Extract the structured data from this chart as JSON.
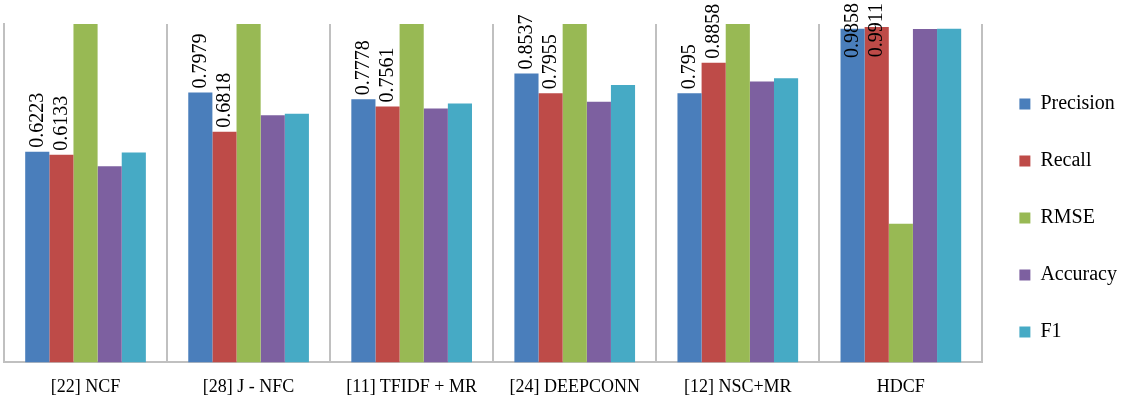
{
  "chart_data": {
    "type": "bar",
    "categories": [
      "[22] NCF",
      "[28] J - NFC",
      "[11] TFIDF + MR",
      "[24] DEEPCONN",
      "[12] NSC+MR",
      "HDCF"
    ],
    "series": [
      {
        "name": "Precision",
        "color": "#4a7ebb",
        "values": [
          0.6223,
          0.7979,
          0.7778,
          0.8537,
          0.795,
          0.9858
        ],
        "value_labels": [
          "0.6223",
          "0.7979",
          "0.7778",
          "0.8537",
          "0.795",
          "0.9858"
        ]
      },
      {
        "name": "Recall",
        "color": "#be4b48",
        "values": [
          0.6133,
          0.6818,
          0.7561,
          0.7955,
          0.8858,
          0.9911
        ],
        "value_labels": [
          "0.6133",
          "0.6818",
          "0.7561",
          "0.7955",
          "0.8858",
          "0.9911"
        ]
      },
      {
        "name": "RMSE",
        "color": "#98b954",
        "values": [
          1,
          1,
          1,
          1,
          1,
          0.41
        ]
      },
      {
        "name": "Accuracy",
        "color": "#7d60a0",
        "values": [
          0.58,
          0.73,
          0.75,
          0.77,
          0.83,
          0.985
        ]
      },
      {
        "name": "F1",
        "color": "#46aac5",
        "values": [
          0.62,
          0.735,
          0.765,
          0.82,
          0.84,
          0.986
        ]
      }
    ],
    "ylim": [
      0,
      1
    ],
    "tick_labels": "x",
    "grid": "x",
    "legend": "right"
  }
}
